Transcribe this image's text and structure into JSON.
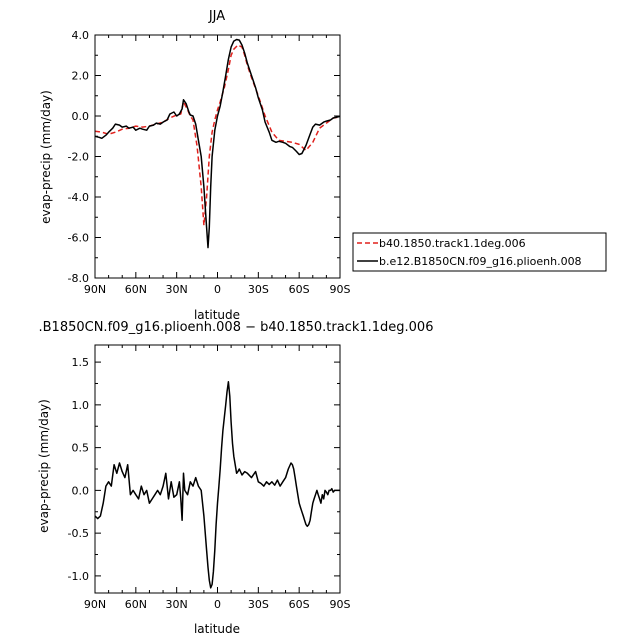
{
  "chart_data": [
    {
      "type": "line",
      "title": "JJA",
      "xlabel": "latitude",
      "ylabel": "evap-precip (mm/day)",
      "xlim": [
        90,
        -90
      ],
      "ylim": [
        -8,
        4
      ],
      "x_ticks": [
        90,
        60,
        30,
        0,
        -30,
        -60,
        -90
      ],
      "x_tick_labels": [
        "90N",
        "60N",
        "30N",
        "0",
        "30S",
        "60S",
        "90S"
      ],
      "y_ticks": [
        -8,
        -6,
        -4,
        -2,
        0,
        2,
        4
      ],
      "y_tick_labels": [
        "-8.0",
        "-6.0",
        "-4.0",
        "-2.0",
        "0.0",
        "2.0",
        "4.0"
      ],
      "legend_position": "right",
      "series": [
        {
          "name": "b40.1850.track1.1deg.006",
          "color": "#e0201c",
          "dash": "dashed",
          "x": [
            90,
            85,
            80,
            75,
            70,
            65,
            60,
            55,
            50,
            45,
            40,
            35,
            30,
            27,
            25,
            22,
            20,
            18,
            15,
            12,
            10,
            8,
            6,
            4,
            2,
            0,
            -2,
            -5,
            -8,
            -10,
            -12,
            -15,
            -18,
            -20,
            -22,
            -25,
            -30,
            -35,
            -40,
            -45,
            -50,
            -55,
            -60,
            -65,
            -70,
            -75,
            -80,
            -85,
            -90
          ],
          "y": [
            -0.75,
            -0.8,
            -0.9,
            -0.8,
            -0.65,
            -0.6,
            -0.5,
            -0.55,
            -0.5,
            -0.4,
            -0.3,
            -0.1,
            0.05,
            0.1,
            0.7,
            0.3,
            0.0,
            -0.2,
            -1.5,
            -3.5,
            -5.4,
            -4.0,
            -2.0,
            -0.8,
            -0.2,
            0.3,
            0.7,
            1.4,
            2.3,
            3.0,
            3.3,
            3.5,
            3.4,
            3.0,
            2.5,
            1.9,
            1.0,
            0.0,
            -0.8,
            -1.2,
            -1.25,
            -1.3,
            -1.4,
            -1.7,
            -1.3,
            -0.6,
            -0.35,
            -0.1,
            -0.05
          ]
        },
        {
          "name": "b.e12.B1850CN.f09_g16.plioenh.008",
          "color": "#000000",
          "dash": "solid",
          "x": [
            90,
            87,
            85,
            82,
            80,
            77,
            75,
            72,
            70,
            67,
            65,
            62,
            60,
            57,
            55,
            52,
            50,
            47,
            45,
            42,
            40,
            37,
            35,
            32,
            30,
            28,
            26,
            25,
            23,
            21,
            20,
            18,
            16,
            14,
            12,
            10,
            8,
            7,
            6,
            5,
            4,
            2,
            0,
            -2,
            -4,
            -6,
            -8,
            -10,
            -12,
            -14,
            -16,
            -18,
            -20,
            -22,
            -25,
            -28,
            -30,
            -33,
            -35,
            -38,
            -40,
            -43,
            -45,
            -48,
            -50,
            -53,
            -55,
            -58,
            -60,
            -62,
            -65,
            -68,
            -70,
            -72,
            -75,
            -78,
            -80,
            -83,
            -85,
            -88,
            -90
          ],
          "y": [
            -1.0,
            -1.05,
            -1.1,
            -0.95,
            -0.8,
            -0.6,
            -0.4,
            -0.45,
            -0.55,
            -0.5,
            -0.6,
            -0.55,
            -0.7,
            -0.6,
            -0.65,
            -0.7,
            -0.5,
            -0.45,
            -0.35,
            -0.4,
            -0.3,
            -0.2,
            0.1,
            0.2,
            0.0,
            0.1,
            0.35,
            0.8,
            0.6,
            0.2,
            0.05,
            0.0,
            -0.4,
            -1.2,
            -2.0,
            -3.5,
            -5.5,
            -6.5,
            -5.5,
            -3.5,
            -2.0,
            -0.7,
            0.0,
            0.5,
            1.2,
            2.0,
            2.8,
            3.4,
            3.7,
            3.78,
            3.75,
            3.5,
            3.1,
            2.6,
            2.0,
            1.4,
            0.9,
            0.3,
            -0.3,
            -0.8,
            -1.2,
            -1.3,
            -1.25,
            -1.3,
            -1.35,
            -1.5,
            -1.55,
            -1.75,
            -1.9,
            -1.85,
            -1.45,
            -0.9,
            -0.55,
            -0.4,
            -0.45,
            -0.3,
            -0.25,
            -0.2,
            -0.1,
            -0.05,
            -0.02
          ]
        }
      ]
    },
    {
      "type": "line",
      "title": ".B1850CN.f09_g16.plioenh.008 − b40.1850.track1.1deg.006",
      "xlabel": "latitude",
      "ylabel": "evap-precip (mm/day)",
      "xlim": [
        90,
        -90
      ],
      "ylim": [
        -1.2,
        1.7
      ],
      "x_ticks": [
        90,
        60,
        30,
        0,
        -30,
        -60,
        -90
      ],
      "x_tick_labels": [
        "90N",
        "60N",
        "30N",
        "0",
        "30S",
        "60S",
        "90S"
      ],
      "y_ticks": [
        -1.0,
        -0.5,
        0.0,
        0.5,
        1.0,
        1.5
      ],
      "y_tick_labels": [
        "-1.0",
        "-0.5",
        "0.0",
        "0.5",
        "1.0",
        "1.5"
      ],
      "series": [
        {
          "name": "",
          "color": "#000000",
          "dash": "solid",
          "x": [
            90,
            88,
            86,
            84,
            82,
            80,
            78,
            76,
            74,
            72,
            70,
            68,
            66,
            64,
            62,
            60,
            58,
            56,
            54,
            52,
            50,
            48,
            46,
            44,
            42,
            40,
            38,
            36,
            34,
            32,
            30,
            28,
            27,
            26,
            25,
            24,
            22,
            20,
            18,
            16,
            14,
            12,
            10,
            8,
            7,
            6,
            5,
            4,
            3,
            2,
            1,
            0,
            -1,
            -2,
            -3,
            -4,
            -5,
            -6,
            -7,
            -8,
            -9,
            -10,
            -11,
            -12,
            -13,
            -14,
            -15,
            -16,
            -18,
            -20,
            -22,
            -25,
            -28,
            -30,
            -32,
            -34,
            -36,
            -38,
            -40,
            -42,
            -44,
            -46,
            -48,
            -50,
            -52,
            -54,
            -55,
            -56,
            -57,
            -58,
            -59,
            -60,
            -61,
            -62,
            -63,
            -64,
            -65,
            -66,
            -67,
            -68,
            -69,
            -70,
            -71,
            -72,
            -73,
            -74,
            -75,
            -76,
            -77,
            -78,
            -79,
            -80,
            -81,
            -82,
            -83,
            -84,
            -85,
            -86,
            -87,
            -88,
            -89,
            -90
          ],
          "y": [
            -0.3,
            -0.33,
            -0.3,
            -0.15,
            0.05,
            0.1,
            0.05,
            0.3,
            0.2,
            0.32,
            0.22,
            0.15,
            0.3,
            -0.05,
            0.0,
            -0.05,
            -0.1,
            0.05,
            -0.05,
            0.0,
            -0.15,
            -0.1,
            -0.05,
            0.0,
            -0.05,
            0.05,
            0.2,
            -0.1,
            0.1,
            -0.08,
            -0.05,
            0.1,
            -0.1,
            -0.35,
            0.2,
            0.0,
            -0.05,
            0.1,
            0.05,
            0.15,
            0.05,
            0.0,
            -0.3,
            -0.7,
            -0.9,
            -1.05,
            -1.14,
            -1.1,
            -0.95,
            -0.7,
            -0.4,
            -0.15,
            0.05,
            0.25,
            0.5,
            0.7,
            0.85,
            1.0,
            1.15,
            1.27,
            1.1,
            0.8,
            0.55,
            0.4,
            0.3,
            0.2,
            0.22,
            0.25,
            0.18,
            0.22,
            0.2,
            0.15,
            0.22,
            0.1,
            0.08,
            0.05,
            0.1,
            0.07,
            0.1,
            0.06,
            0.12,
            0.05,
            0.1,
            0.15,
            0.25,
            0.32,
            0.3,
            0.25,
            0.15,
            0.05,
            -0.05,
            -0.15,
            -0.2,
            -0.25,
            -0.3,
            -0.35,
            -0.4,
            -0.42,
            -0.4,
            -0.35,
            -0.25,
            -0.15,
            -0.1,
            -0.05,
            0.0,
            -0.05,
            -0.1,
            -0.15,
            -0.05,
            -0.1,
            0.0,
            -0.02,
            -0.05,
            0.0,
            0.0,
            0.02,
            -0.02,
            0.0,
            0.0,
            0.0,
            0.0,
            0.0
          ]
        }
      ]
    }
  ]
}
